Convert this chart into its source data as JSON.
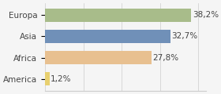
{
  "categories": [
    "Europa",
    "Asia",
    "Africa",
    "America"
  ],
  "values": [
    38.2,
    32.7,
    27.8,
    1.2
  ],
  "labels": [
    "38,2%",
    "32,7%",
    "27,8%",
    "1,2%"
  ],
  "bar_colors": [
    "#a8bc8a",
    "#7090b8",
    "#e8c090",
    "#e8d070"
  ],
  "background_color": "#f5f5f5",
  "xlim": [
    0,
    42
  ],
  "label_fontsize": 7.5,
  "tick_fontsize": 7.5
}
